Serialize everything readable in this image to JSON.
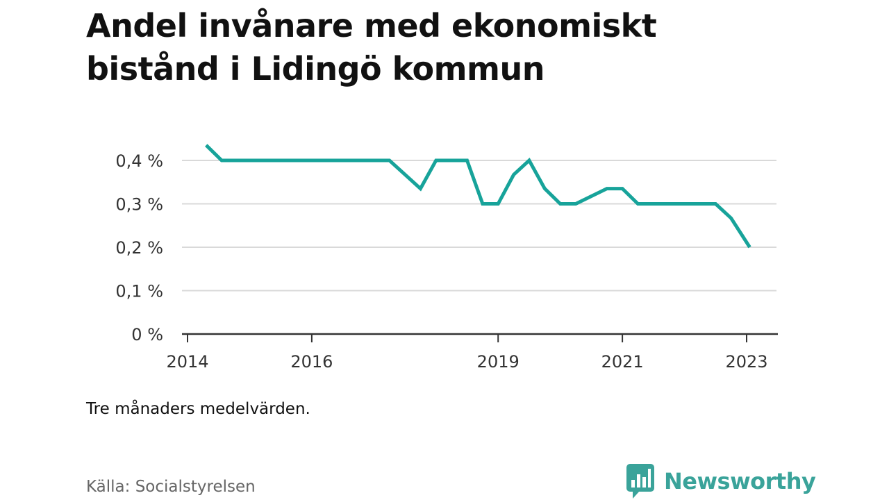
{
  "title": "Andel invånare med ekonomiskt bistånd i Lidingö kommun",
  "note": "Tre månaders medelvärden.",
  "source": "Källa: Socialstyrelsen",
  "brand": {
    "name": "Newsworthy",
    "color": "#3aa39a",
    "icon": "bar-chart-speech-bubble-icon"
  },
  "chart_data": {
    "type": "line",
    "title": "Andel invånare med ekonomiskt bistånd i Lidingö kommun",
    "xlabel": "",
    "ylabel": "",
    "x_ticks": [
      {
        "label": "2014",
        "value": 2014
      },
      {
        "label": "2016",
        "value": 2016
      },
      {
        "label": "2019",
        "value": 2019
      },
      {
        "label": "2021",
        "value": 2021
      },
      {
        "label": "2023",
        "value": 2023
      }
    ],
    "y_ticks": [
      {
        "label": "0 %",
        "value": 0
      },
      {
        "label": "0,1 %",
        "value": 0.1
      },
      {
        "label": "0,2 %",
        "value": 0.2
      },
      {
        "label": "0,3 %",
        "value": 0.3
      },
      {
        "label": "0,4 %",
        "value": 0.4
      }
    ],
    "xlim": [
      2014,
      2023.5
    ],
    "ylim": [
      0,
      0.45
    ],
    "grid": "horizontal",
    "line_color": "#17a39a",
    "series": [
      {
        "x": [
          2014.3,
          2014.55,
          2017.25,
          2017.75,
          2018.0,
          2018.5,
          2018.75,
          2019.0,
          2019.25,
          2019.5,
          2019.75,
          2020.0,
          2020.25,
          2020.75,
          2021.0,
          2021.25,
          2021.5,
          2021.75,
          2022.5,
          2022.75,
          2023.05
        ],
        "y": [
          0.435,
          0.4,
          0.4,
          0.335,
          0.4,
          0.4,
          0.3,
          0.3,
          0.367,
          0.4,
          0.335,
          0.3,
          0.3,
          0.335,
          0.335,
          0.3,
          0.3,
          0.3,
          0.3,
          0.267,
          0.2
        ]
      }
    ]
  }
}
